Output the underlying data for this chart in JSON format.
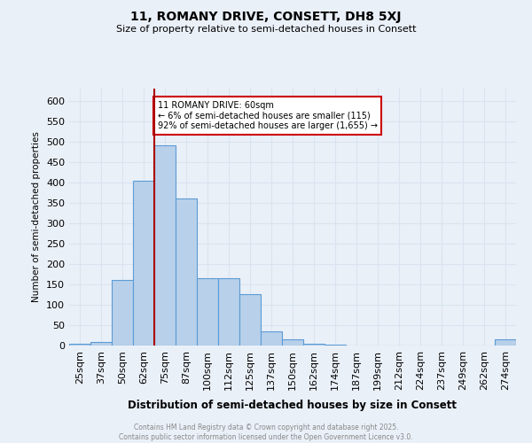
{
  "title": "11, ROMANY DRIVE, CONSETT, DH8 5XJ",
  "subtitle": "Size of property relative to semi-detached houses in Consett",
  "xlabel": "Distribution of semi-detached houses by size in Consett",
  "ylabel": "Number of semi-detached properties",
  "bar_labels": [
    "25sqm",
    "37sqm",
    "50sqm",
    "62sqm",
    "75sqm",
    "87sqm",
    "100sqm",
    "112sqm",
    "125sqm",
    "137sqm",
    "150sqm",
    "162sqm",
    "174sqm",
    "187sqm",
    "199sqm",
    "212sqm",
    "224sqm",
    "237sqm",
    "249sqm",
    "262sqm",
    "274sqm"
  ],
  "bar_values": [
    5,
    8,
    160,
    405,
    490,
    360,
    165,
    165,
    125,
    35,
    15,
    5,
    3,
    1,
    0,
    0,
    0,
    0,
    0,
    0,
    15
  ],
  "bar_color": "#b8d0ea",
  "bar_edge_color": "#5b9bd5",
  "background_color": "#eaf0f8",
  "grid_color": "#d8e4f0",
  "red_line_x": 3.5,
  "annotation_text": "11 ROMANY DRIVE: 60sqm\n← 6% of semi-detached houses are smaller (115)\n92% of semi-detached houses are larger (1,655) →",
  "annotation_box_color": "#ffffff",
  "annotation_box_edge": "#cc0000",
  "footer_text": "Contains HM Land Registry data © Crown copyright and database right 2025.\nContains public sector information licensed under the Open Government Licence v3.0.",
  "ylim": [
    0,
    630
  ],
  "yticks": [
    0,
    50,
    100,
    150,
    200,
    250,
    300,
    350,
    400,
    450,
    500,
    550,
    600
  ]
}
